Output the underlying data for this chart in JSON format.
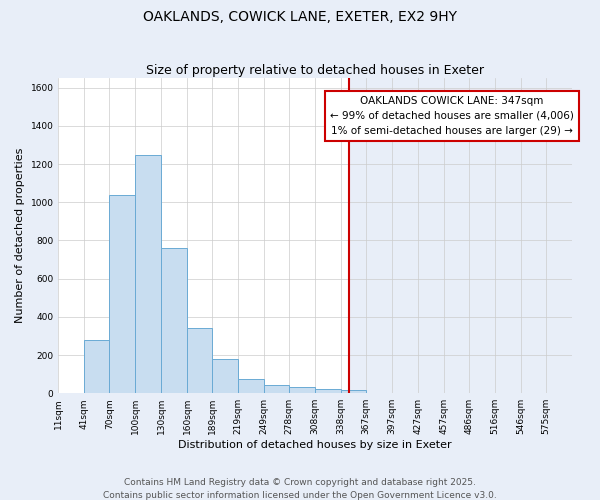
{
  "title": "OAKLANDS, COWICK LANE, EXETER, EX2 9HY",
  "subtitle": "Size of property relative to detached houses in Exeter",
  "xlabel": "Distribution of detached houses by size in Exeter",
  "ylabel": "Number of detached properties",
  "bin_edges": [
    11,
    41,
    70,
    100,
    130,
    160,
    189,
    219,
    249,
    278,
    308,
    338,
    367,
    397,
    427,
    457,
    486,
    516,
    546,
    575,
    605
  ],
  "bar_heights": [
    0,
    280,
    1040,
    1250,
    760,
    340,
    180,
    75,
    45,
    30,
    20,
    15,
    0,
    0,
    0,
    0,
    0,
    0,
    0,
    0
  ],
  "bar_fill_color": "#c8ddf0",
  "bar_edge_color": "#6aaad4",
  "vline_x": 347,
  "vline_color": "#cc0000",
  "annotation_text": "OAKLANDS COWICK LANE: 347sqm\n← 99% of detached houses are smaller (4,006)\n1% of semi-detached houses are larger (29) →",
  "annotation_box_color": "#ffffff",
  "annotation_box_edge_color": "#cc0000",
  "ylim": [
    0,
    1650
  ],
  "yticks": [
    0,
    200,
    400,
    600,
    800,
    1000,
    1200,
    1400,
    1600
  ],
  "xlim": [
    11,
    605
  ],
  "bg_left_color": "#ffffff",
  "bg_right_color": "#e8eef8",
  "grid_color": "#cccccc",
  "footer_line1": "Contains HM Land Registry data © Crown copyright and database right 2025.",
  "footer_line2": "Contains public sector information licensed under the Open Government Licence v3.0.",
  "title_fontsize": 10,
  "subtitle_fontsize": 9,
  "axis_label_fontsize": 8,
  "tick_label_fontsize": 6.5,
  "annotation_fontsize": 7.5,
  "footer_fontsize": 6.5
}
